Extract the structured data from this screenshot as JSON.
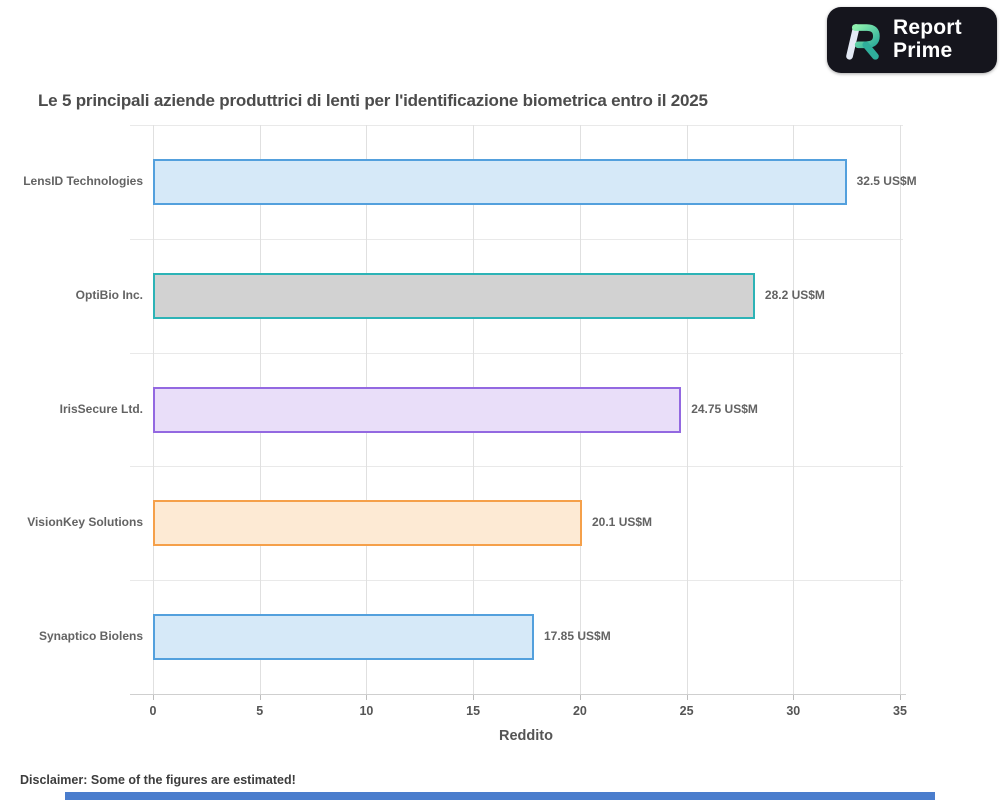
{
  "logo": {
    "line1": "Report",
    "line2": "Prime"
  },
  "chart_data": {
    "type": "bar",
    "orientation": "horizontal",
    "title": "Le 5 principali aziende produttrici di lenti per l'identificazione biometrica entro il 2025",
    "categories": [
      "LensID Technologies",
      "OptiBio Inc.",
      "IrisSecure Ltd.",
      "VisionKey Solutions",
      "Synaptico Biolens"
    ],
    "values": [
      32.5,
      28.2,
      24.75,
      20.1,
      17.85
    ],
    "labels": [
      "32.5 US$M",
      "28.2 US$M",
      "24.75 US$M",
      "20.1 US$M",
      "17.85 US$M"
    ],
    "unit": "US$M",
    "xlabel": "Reddito",
    "xlim": [
      0,
      35
    ],
    "xticks": [
      0,
      5,
      10,
      15,
      20,
      25,
      30,
      35
    ],
    "grid": true,
    "legend": "none",
    "bar_fills": [
      "#d6e9f8",
      "#d2d2d2",
      "#e9def9",
      "#fdead4",
      "#d6e9f8"
    ],
    "bar_borders": [
      "#53a0dd",
      "#2db3b6",
      "#9368e1",
      "#f5a04a",
      "#53a0dd"
    ]
  },
  "footer": {
    "disclaimer": "Disclaimer: Some of the figures are estimated!"
  },
  "colors": {
    "accent_strip": "#4a7dcd",
    "logo_bg": "#15151d",
    "title_text": "#4c4c4c"
  }
}
